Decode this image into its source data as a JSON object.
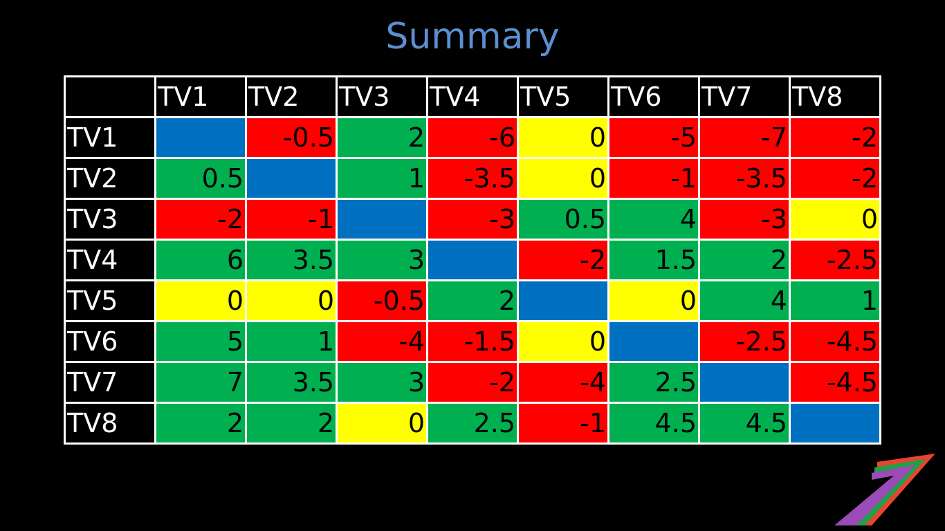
{
  "title": "Summary",
  "colors": {
    "title": "#5b8fd0",
    "negative": "#ff0000",
    "positive": "#00b050",
    "zero": "#ffff00",
    "diagonal": "#0070c0",
    "header_bg": "#000000",
    "grid": "#ffffff"
  },
  "logo_icon": "stripe-logo-icon",
  "table": {
    "corner": "",
    "columns": [
      "TV1",
      "TV2",
      "TV3",
      "TV4",
      "TV5",
      "TV6",
      "TV7",
      "TV8"
    ],
    "rows": [
      {
        "label": "TV1",
        "cells": [
          "",
          "-0.5",
          "2",
          "-6",
          "0",
          "-5",
          "-7",
          "-2"
        ]
      },
      {
        "label": "TV2",
        "cells": [
          "0.5",
          "",
          "1",
          "-3.5",
          "0",
          "-1",
          "-3.5",
          "-2"
        ]
      },
      {
        "label": "TV3",
        "cells": [
          "-2",
          "-1",
          "",
          "-3",
          "0.5",
          "4",
          "-3",
          "0"
        ]
      },
      {
        "label": "TV4",
        "cells": [
          "6",
          "3.5",
          "3",
          "",
          "-2",
          "1.5",
          "2",
          "-2.5"
        ]
      },
      {
        "label": "TV5",
        "cells": [
          "0",
          "0",
          "-0.5",
          "2",
          "",
          "0",
          "4",
          "1"
        ]
      },
      {
        "label": "TV6",
        "cells": [
          "5",
          "1",
          "-4",
          "-1.5",
          "0",
          "",
          "-2.5",
          "-4.5"
        ]
      },
      {
        "label": "TV7",
        "cells": [
          "7",
          "3.5",
          "3",
          "-2",
          "-4",
          "2.5",
          "",
          "-4.5"
        ]
      },
      {
        "label": "TV8",
        "cells": [
          "2",
          "2",
          "0",
          "2.5",
          "-1",
          "4.5",
          "4.5",
          ""
        ]
      }
    ]
  }
}
